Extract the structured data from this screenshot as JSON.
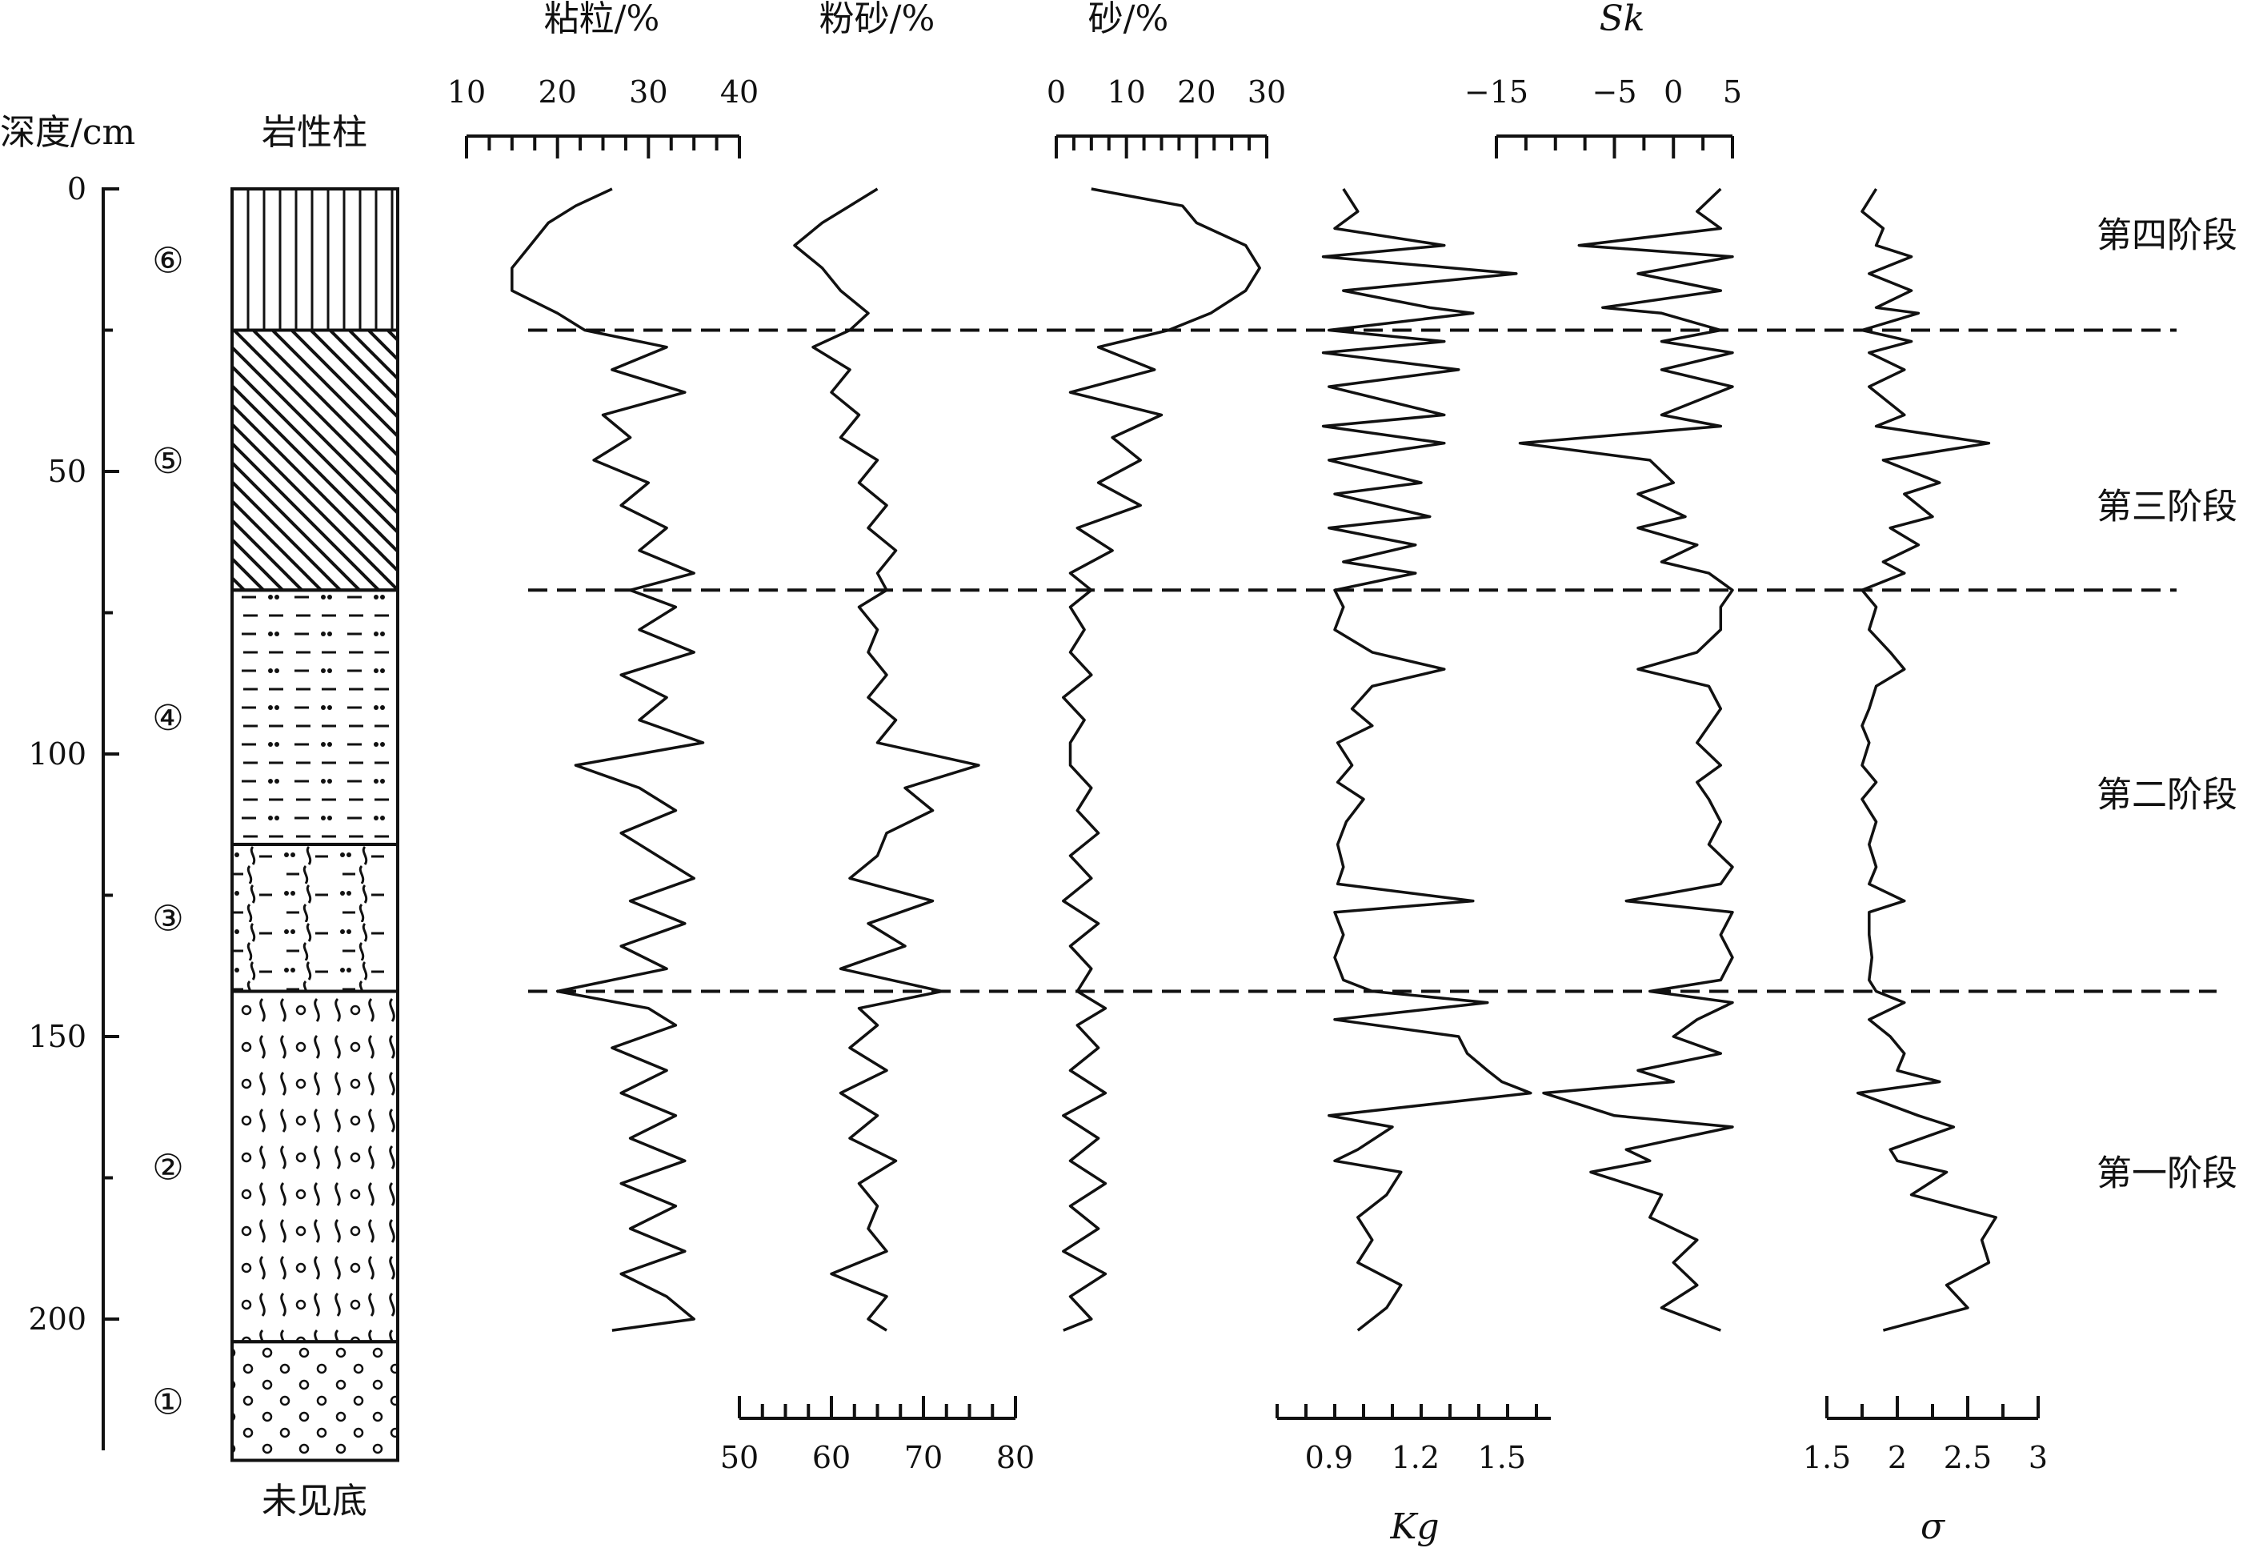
{
  "chart_data": {
    "type": "line",
    "layout": "stratigraphic depth profile, depth increasing downward, six property curves side by side",
    "depth_axis": {
      "label": "深度/cm",
      "range": [
        0,
        225
      ],
      "ticks": [
        0,
        50,
        100,
        150,
        200
      ]
    },
    "lithology_column": {
      "title": "岩性柱",
      "bottom_note": "未见底",
      "layers": [
        {
          "id": "⑥",
          "top": 0,
          "bottom": 25,
          "pattern": "vertical-lines"
        },
        {
          "id": "⑤",
          "top": 25,
          "bottom": 71,
          "pattern": "diagonal-lines"
        },
        {
          "id": "④",
          "top": 71,
          "bottom": 116,
          "pattern": "dots-dashes"
        },
        {
          "id": "③",
          "top": 116,
          "bottom": 142,
          "pattern": "dots-dashes-waves"
        },
        {
          "id": "②",
          "top": 142,
          "bottom": 204,
          "pattern": "waves-circles"
        },
        {
          "id": "①",
          "top": 204,
          "bottom": 225,
          "pattern": "circles"
        }
      ]
    },
    "stage_boundaries": [
      25,
      71,
      142
    ],
    "stages": [
      {
        "label": "第四阶段",
        "center_depth": 8
      },
      {
        "label": "第三阶段",
        "center_depth": 56
      },
      {
        "label": "第二阶段",
        "center_depth": 107
      },
      {
        "label": "第一阶段",
        "center_depth": 174
      }
    ],
    "series": [
      {
        "name": "粘粒/%",
        "axis_position": "top",
        "range": [
          10,
          40
        ],
        "ticks": [
          10,
          20,
          30,
          40
        ],
        "minor_step": 2.5,
        "depth": [
          0,
          3,
          6,
          10,
          14,
          18,
          22,
          25,
          28,
          32,
          36,
          40,
          44,
          48,
          52,
          56,
          60,
          64,
          68,
          71,
          74,
          78,
          82,
          86,
          90,
          94,
          98,
          102,
          106,
          110,
          114,
          118,
          122,
          126,
          130,
          134,
          138,
          142,
          145,
          148,
          152,
          156,
          160,
          164,
          168,
          172,
          176,
          180,
          184,
          188,
          192,
          196,
          200,
          202
        ],
        "values": [
          26,
          22,
          19,
          17,
          15,
          15,
          20,
          23,
          32,
          26,
          34,
          25,
          28,
          24,
          30,
          27,
          32,
          29,
          35,
          28,
          33,
          29,
          35,
          27,
          32,
          29,
          36,
          22,
          29,
          33,
          27,
          31,
          35,
          28,
          34,
          27,
          32,
          20,
          30,
          33,
          26,
          32,
          27,
          33,
          28,
          34,
          27,
          33,
          28,
          34,
          27,
          32,
          35,
          26
        ]
      },
      {
        "name": "粉砂/%",
        "axis_position": "bottom",
        "range": [
          50,
          80
        ],
        "ticks": [
          50,
          60,
          70,
          80
        ],
        "minor_step": 2.5,
        "depth": [
          0,
          3,
          6,
          10,
          14,
          18,
          22,
          25,
          28,
          32,
          36,
          40,
          44,
          48,
          52,
          56,
          60,
          64,
          68,
          71,
          74,
          78,
          82,
          86,
          90,
          94,
          98,
          102,
          106,
          110,
          114,
          118,
          122,
          126,
          130,
          134,
          138,
          142,
          145,
          148,
          152,
          156,
          160,
          164,
          168,
          172,
          176,
          180,
          184,
          188,
          192,
          196,
          200,
          202
        ],
        "values": [
          65,
          62,
          59,
          56,
          59,
          61,
          64,
          62,
          58,
          62,
          60,
          63,
          61,
          65,
          63,
          66,
          64,
          67,
          65,
          66,
          63,
          65,
          64,
          66,
          64,
          67,
          65,
          76,
          68,
          71,
          66,
          65,
          62,
          71,
          64,
          68,
          61,
          72,
          63,
          65,
          62,
          66,
          61,
          65,
          62,
          67,
          63,
          65,
          64,
          66,
          60,
          66,
          64,
          66
        ]
      },
      {
        "name": "砂/%",
        "axis_position": "top",
        "range": [
          0,
          30
        ],
        "ticks": [
          0,
          10,
          20,
          30
        ],
        "minor_step": 2.5,
        "depth": [
          0,
          3,
          6,
          10,
          14,
          18,
          22,
          25,
          28,
          32,
          36,
          40,
          44,
          48,
          52,
          56,
          60,
          64,
          68,
          71,
          74,
          78,
          82,
          86,
          90,
          94,
          98,
          102,
          106,
          110,
          114,
          118,
          122,
          126,
          130,
          134,
          138,
          142,
          145,
          148,
          152,
          156,
          160,
          164,
          168,
          172,
          176,
          180,
          184,
          188,
          192,
          196,
          200,
          202
        ],
        "values": [
          5,
          18,
          20,
          27,
          29,
          27,
          22,
          16,
          6,
          14,
          2,
          15,
          8,
          12,
          6,
          12,
          3,
          8,
          2,
          5,
          2,
          4,
          2,
          5,
          1,
          4,
          2,
          2,
          5,
          3,
          6,
          2,
          5,
          1,
          6,
          2,
          5,
          3,
          7,
          3,
          6,
          2,
          7,
          1,
          6,
          2,
          7,
          2,
          6,
          1,
          7,
          2,
          5,
          1
        ]
      },
      {
        "name": "Kg",
        "axis_position": "bottom",
        "range": [
          0.72,
          1.67
        ],
        "ticks": [
          0.9,
          1.2,
          1.5
        ],
        "minor_step": 0.1,
        "depth": [
          0,
          4,
          7,
          10,
          12,
          15,
          18,
          21,
          22,
          25,
          27,
          29,
          32,
          35,
          40,
          42,
          45,
          48,
          52,
          54,
          58,
          60,
          63,
          66,
          68,
          71,
          74,
          78,
          82,
          85,
          88,
          92,
          95,
          98,
          102,
          105,
          108,
          112,
          116,
          120,
          123,
          126,
          128,
          132,
          136,
          140,
          142,
          144,
          147,
          150,
          153,
          156,
          158,
          160,
          164,
          166,
          170,
          172,
          174,
          178,
          182,
          186,
          190,
          194,
          198,
          202
        ],
        "values": [
          0.95,
          1.0,
          0.92,
          1.3,
          0.88,
          1.55,
          0.95,
          1.25,
          1.4,
          0.9,
          1.3,
          0.88,
          1.35,
          0.9,
          1.3,
          0.88,
          1.3,
          0.9,
          1.22,
          0.92,
          1.25,
          0.9,
          1.2,
          0.95,
          1.2,
          0.92,
          0.95,
          0.92,
          1.05,
          1.3,
          1.05,
          0.98,
          1.05,
          0.93,
          0.98,
          0.93,
          1.02,
          0.96,
          0.93,
          0.95,
          0.93,
          1.4,
          0.92,
          0.95,
          0.92,
          0.95,
          1.05,
          1.45,
          0.92,
          1.35,
          1.38,
          1.45,
          1.5,
          1.6,
          0.9,
          1.12,
          1.0,
          0.92,
          1.15,
          1.1,
          1.0,
          1.05,
          1.0,
          1.15,
          1.1,
          1.0
        ]
      },
      {
        "name": "Sk",
        "axis_position": "top",
        "range": [
          -15,
          5
        ],
        "ticks": [
          -15,
          -5,
          0,
          5
        ],
        "minor_step": 2.5,
        "depth": [
          0,
          4,
          7,
          10,
          12,
          15,
          18,
          21,
          22,
          25,
          27,
          29,
          32,
          35,
          40,
          42,
          45,
          48,
          52,
          54,
          58,
          60,
          63,
          66,
          68,
          71,
          74,
          78,
          82,
          85,
          88,
          92,
          95,
          98,
          102,
          105,
          108,
          112,
          116,
          120,
          123,
          126,
          128,
          132,
          136,
          140,
          142,
          144,
          147,
          150,
          153,
          156,
          158,
          160,
          164,
          166,
          170,
          172,
          174,
          178,
          182,
          186,
          190,
          194,
          198,
          202
        ],
        "values": [
          4,
          2,
          4,
          -8,
          5,
          -3,
          4,
          -6,
          -1,
          4,
          -1,
          5,
          -1,
          5,
          -1,
          4,
          -13,
          -2,
          0,
          -3,
          1,
          -3,
          2,
          -1,
          3,
          5,
          4,
          4,
          2,
          -3,
          3,
          4,
          3,
          2,
          4,
          2,
          3,
          4,
          3,
          5,
          4,
          -4,
          5,
          4,
          5,
          4,
          -2,
          5,
          2,
          0,
          4,
          -3,
          0,
          -11,
          -5,
          5,
          -4,
          -2,
          -7,
          -1,
          -2,
          2,
          0,
          2,
          -1,
          4
        ]
      },
      {
        "name": "σ",
        "axis_position": "bottom",
        "range": [
          1.5,
          3.0
        ],
        "ticks": [
          1.5,
          2,
          2.5,
          3
        ],
        "minor_step": 0.25,
        "depth": [
          0,
          4,
          7,
          10,
          12,
          15,
          18,
          21,
          22,
          25,
          27,
          29,
          32,
          35,
          40,
          42,
          45,
          48,
          52,
          54,
          58,
          60,
          63,
          66,
          68,
          71,
          74,
          78,
          82,
          85,
          88,
          92,
          95,
          98,
          102,
          105,
          108,
          112,
          116,
          120,
          123,
          126,
          128,
          132,
          136,
          140,
          142,
          144,
          147,
          150,
          153,
          156,
          158,
          160,
          164,
          166,
          170,
          172,
          174,
          178,
          182,
          186,
          190,
          194,
          198,
          202
        ],
        "values": [
          1.85,
          1.75,
          1.9,
          1.85,
          2.1,
          1.8,
          2.1,
          1.85,
          2.15,
          1.75,
          2.1,
          1.8,
          2.05,
          1.8,
          2.05,
          1.85,
          2.65,
          1.9,
          2.3,
          2.05,
          2.25,
          1.95,
          2.15,
          1.9,
          2.05,
          1.75,
          1.85,
          1.8,
          1.95,
          2.05,
          1.85,
          1.8,
          1.75,
          1.8,
          1.75,
          1.85,
          1.75,
          1.85,
          1.8,
          1.85,
          1.8,
          2.05,
          1.8,
          1.8,
          1.82,
          1.8,
          1.85,
          2.05,
          1.8,
          1.95,
          2.05,
          2.0,
          2.3,
          1.72,
          2.15,
          2.4,
          1.95,
          2.0,
          2.35,
          2.1,
          2.7,
          2.6,
          2.65,
          2.35,
          2.5,
          1.9
        ]
      }
    ]
  }
}
